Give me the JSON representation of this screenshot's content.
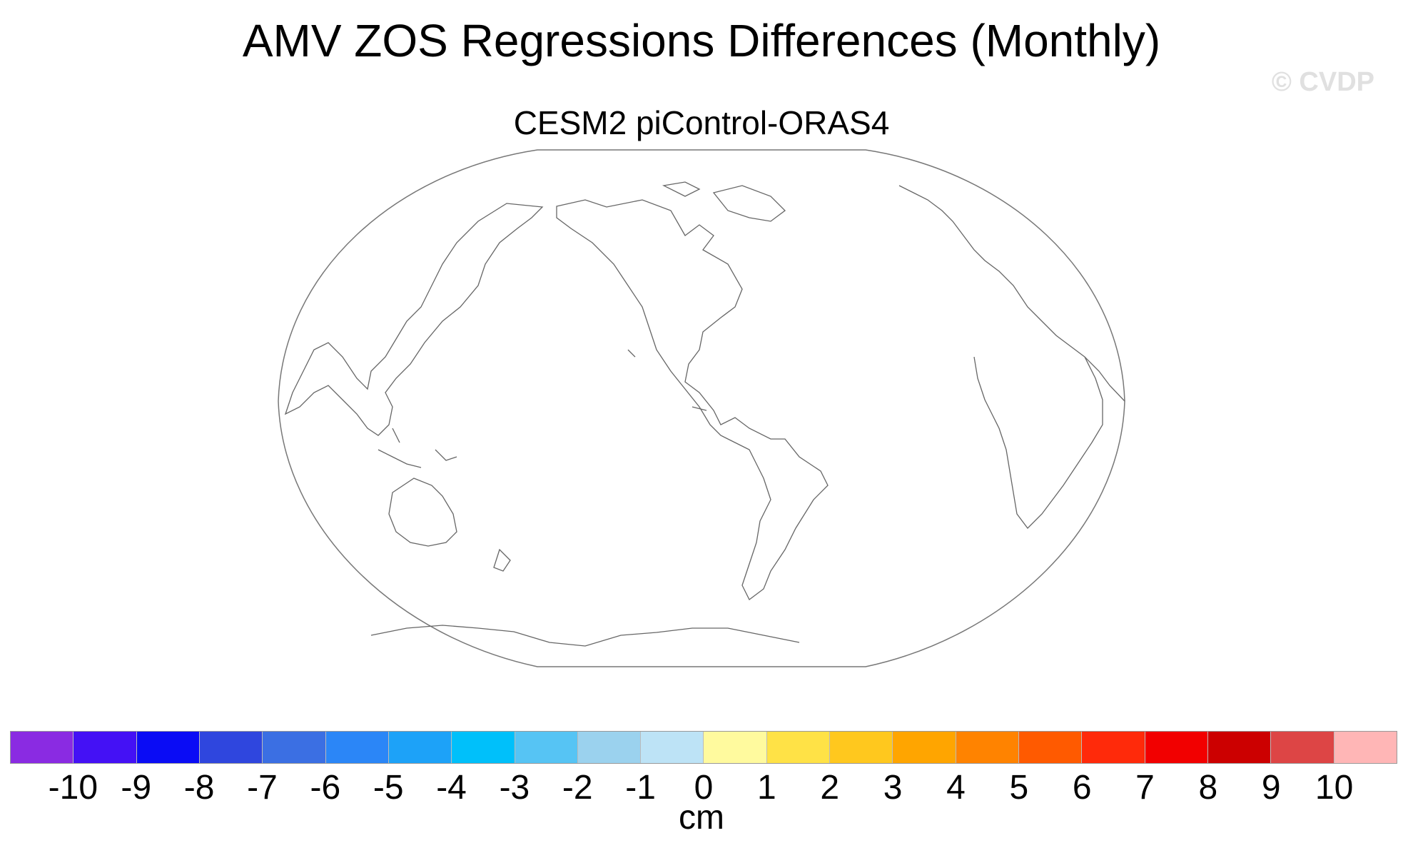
{
  "title": "AMV ZOS Regressions Differences (Monthly)",
  "watermark": "© CVDP",
  "subtitle": "CESM2 piControl-ORAS4",
  "map": {
    "projection": "global map, Pacific-centered",
    "features": [
      "coastlines"
    ],
    "field": "blank (no shaded data)"
  },
  "colorbar": {
    "units": "cm",
    "tick_labels": [
      "-10",
      "-9",
      "-8",
      "-7",
      "-6",
      "-5",
      "-4",
      "-3",
      "-2",
      "-1",
      "0",
      "1",
      "2",
      "3",
      "4",
      "5",
      "6",
      "7",
      "8",
      "9",
      "10"
    ],
    "colors": [
      "#8a2be2",
      "#4411f5",
      "#0a0cf5",
      "#2f46de",
      "#3b6fe3",
      "#2b86f7",
      "#1da2f8",
      "#00c0fa",
      "#56c4f4",
      "#9bd2ee",
      "#bde3f6",
      "#fffa9e",
      "#ffe246",
      "#ffc81e",
      "#ffa500",
      "#ff8300",
      "#ff5a00",
      "#ff2a0a",
      "#f20000",
      "#cc0000",
      "#dd4545",
      "#ffb6b6"
    ]
  }
}
